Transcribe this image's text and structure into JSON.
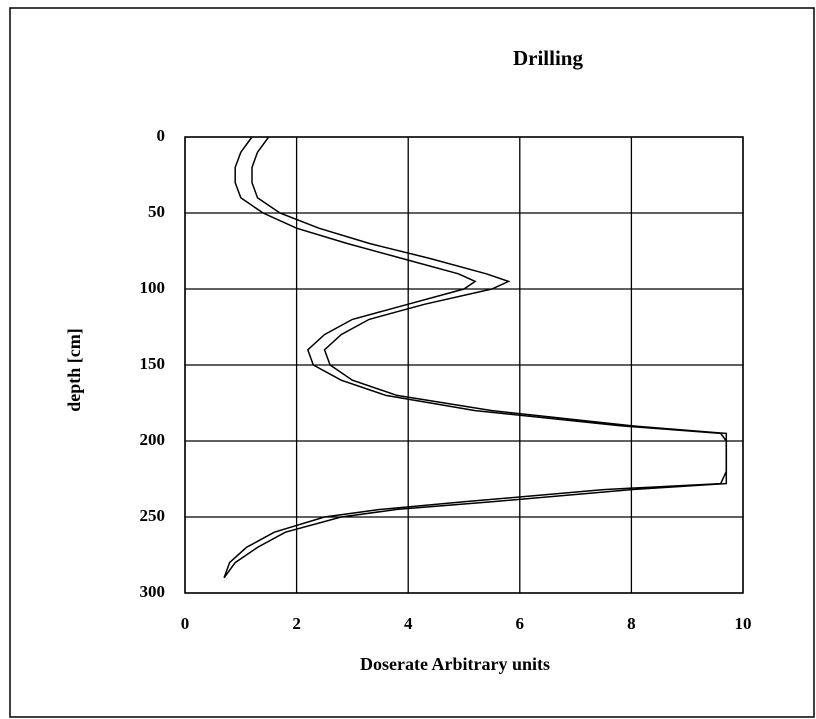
{
  "chart_data": {
    "type": "line",
    "title": "Drilling",
    "xlabel": "Doserate Arbitrary units",
    "ylabel": "depth [cm]",
    "xlim": [
      0,
      10
    ],
    "xticks": [
      0,
      2,
      4,
      6,
      8,
      10
    ],
    "ylim": [
      0,
      300
    ],
    "yticks": [
      0,
      50,
      100,
      150,
      200,
      250,
      300
    ],
    "y_inverted": true,
    "grid": true,
    "series": [
      {
        "color": "#000000",
        "x": [
          1.5,
          1.3,
          1.2,
          1.2,
          1.3,
          1.7,
          2.4,
          3.3,
          4.4,
          5.4,
          5.8,
          5.5,
          4.3,
          3.3,
          2.8,
          2.5,
          2.6,
          3.0,
          3.8,
          5.5,
          8.0,
          9.7,
          9.7,
          9.7,
          9.7,
          8.0,
          5.5,
          3.8,
          2.8,
          1.8,
          1.3,
          0.9,
          0.7
        ],
        "values": [
          0,
          10,
          20,
          30,
          40,
          50,
          60,
          70,
          80,
          90,
          95,
          100,
          110,
          120,
          130,
          140,
          150,
          160,
          170,
          180,
          190,
          195,
          200,
          220,
          228,
          232,
          240,
          245,
          250,
          260,
          270,
          280,
          290
        ]
      },
      {
        "color": "#000000",
        "x": [
          1.2,
          1.0,
          0.9,
          0.9,
          1.0,
          1.4,
          2.0,
          2.9,
          3.9,
          4.9,
          5.2,
          5.0,
          4.0,
          3.0,
          2.5,
          2.2,
          2.3,
          2.8,
          3.6,
          5.2,
          7.8,
          9.6,
          9.7,
          9.7,
          9.6,
          7.5,
          5.0,
          3.5,
          2.5,
          1.6,
          1.1,
          0.8,
          0.7
        ],
        "values": [
          0,
          10,
          20,
          30,
          40,
          50,
          60,
          70,
          80,
          90,
          95,
          100,
          110,
          120,
          130,
          140,
          150,
          160,
          170,
          180,
          190,
          195,
          200,
          220,
          228,
          232,
          240,
          245,
          250,
          260,
          270,
          280,
          290
        ]
      }
    ]
  }
}
